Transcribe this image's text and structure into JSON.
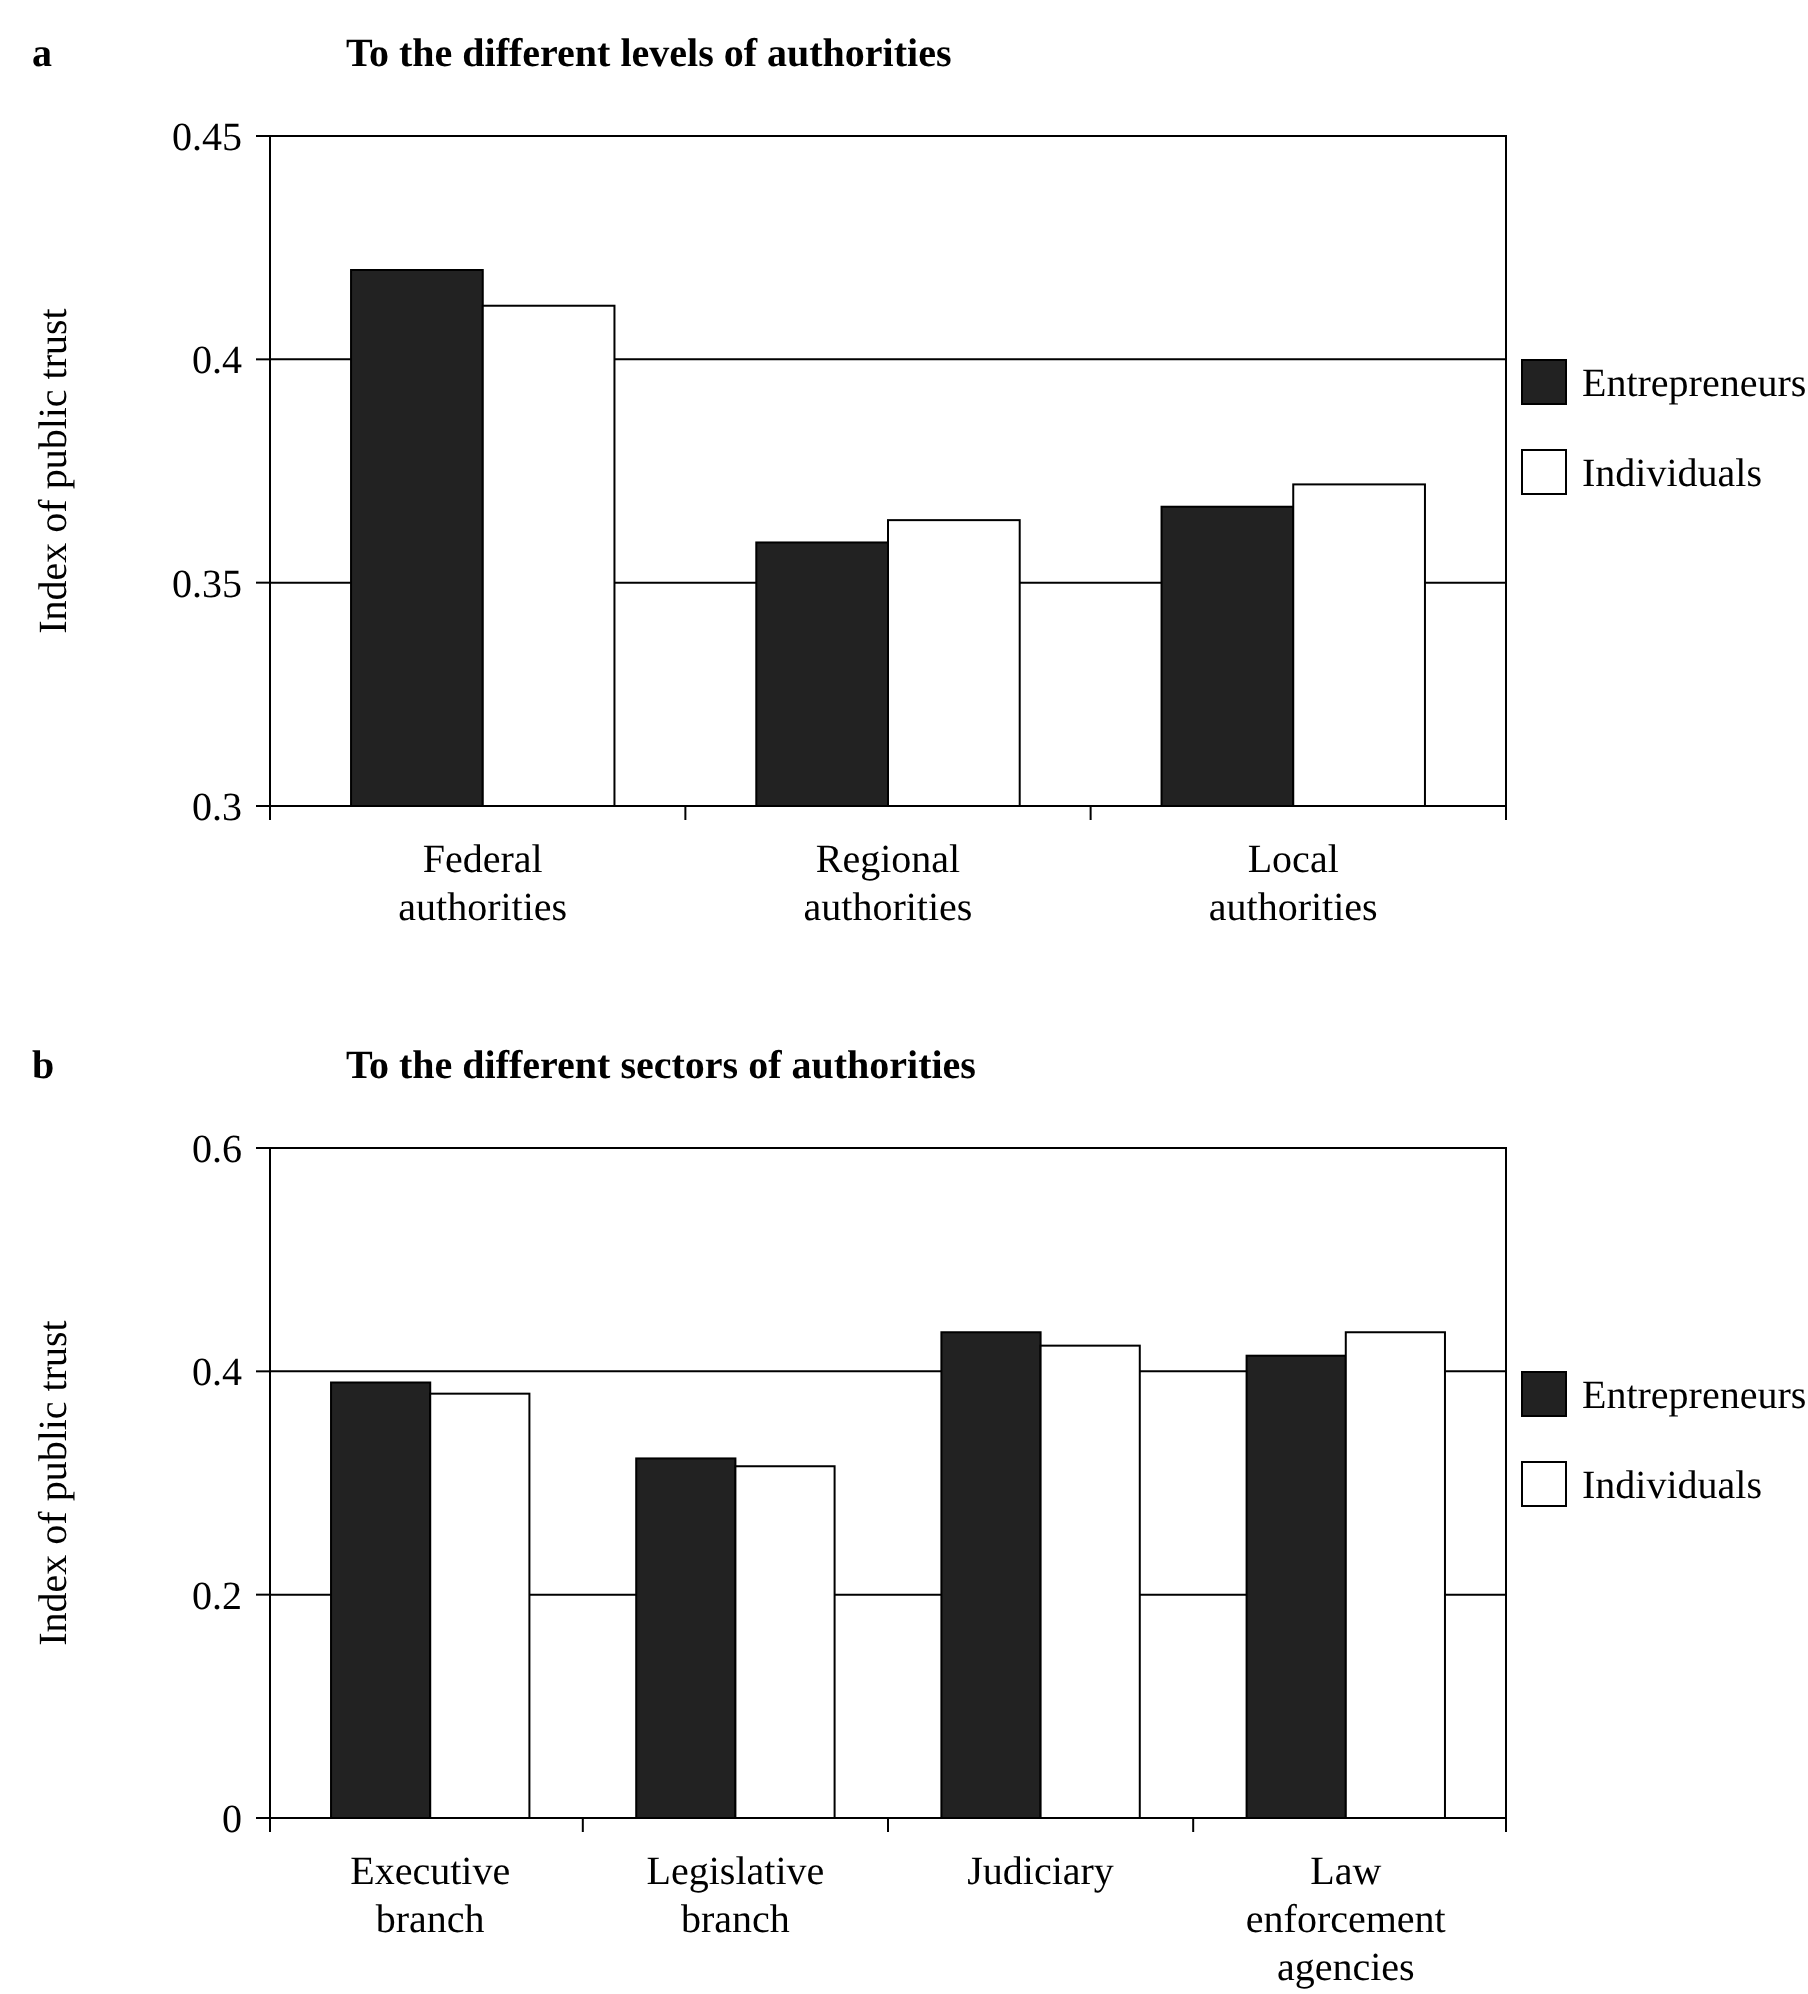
{
  "chart_data": [
    {
      "type": "bar",
      "title": "To the different levels of authorities",
      "annotations": [
        "a"
      ],
      "ylabel": "Index of public trust",
      "categories": [
        "Federal authorities",
        "Regional authorities",
        "Local authorities"
      ],
      "series": [
        {
          "name": "Entrepreneurs",
          "color": "#222222",
          "values": [
            0.42,
            0.359,
            0.367
          ]
        },
        {
          "name": "Individuals",
          "color": "#ffffff",
          "values": [
            0.412,
            0.364,
            0.372
          ]
        }
      ],
      "ylim": [
        0.3,
        0.45
      ],
      "yticks": [
        0.3,
        0.35,
        0.4,
        0.45
      ],
      "grid": "y",
      "legend": "right"
    },
    {
      "type": "bar",
      "title": "To the different sectors of authorities",
      "annotations": [
        "b"
      ],
      "ylabel": "Index of public trust",
      "categories": [
        "Executive branch",
        "Legislative branch",
        "Judiciary",
        "Law enforcement agencies"
      ],
      "series": [
        {
          "name": "Entrepreneurs",
          "color": "#222222",
          "values": [
            0.39,
            0.322,
            0.435,
            0.414
          ]
        },
        {
          "name": "Individuals",
          "color": "#ffffff",
          "values": [
            0.38,
            0.315,
            0.423,
            0.435
          ]
        }
      ],
      "ylim": [
        0,
        0.6
      ],
      "yticks": [
        0,
        0.2,
        0.4,
        0.6
      ],
      "grid": "y",
      "legend": "right"
    }
  ]
}
